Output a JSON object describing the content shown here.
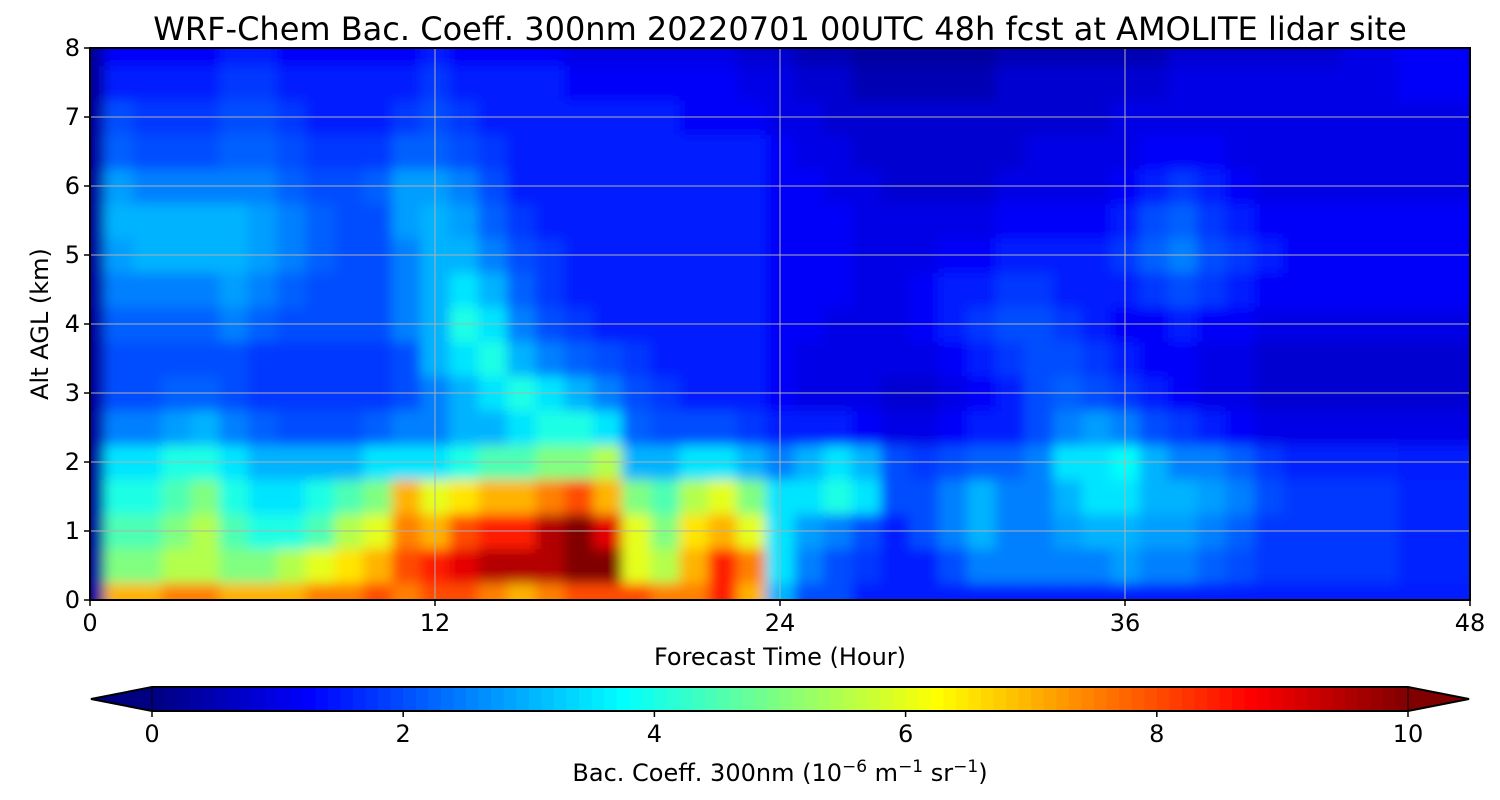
{
  "chart_data": {
    "type": "heatmap",
    "subtype": "filled-contour time-height cross-section",
    "title": "WRF-Chem Bac. Coeff. 300nm  20220701 00UTC 48h fcst at AMOLITE lidar site",
    "xlabel": "Forecast Time (Hour)",
    "ylabel": "Alt AGL (km)",
    "xlim": [
      0,
      48
    ],
    "ylim": [
      0,
      8
    ],
    "xticks": [
      0,
      12,
      24,
      36,
      48
    ],
    "yticks": [
      0,
      1,
      2,
      3,
      4,
      5,
      6,
      7,
      8
    ],
    "grid": true,
    "colormap": "jet",
    "colorbar": {
      "orientation": "horizontal",
      "placement": "bottom",
      "label_main": "Bac. Coeff. 300nm  (10",
      "label_exp1": "−6",
      "label_unit1": " m",
      "label_exp2": "−1",
      "label_unit2": " sr",
      "label_exp3": "−1",
      "label_close": ")",
      "vmin": 0,
      "vmax": 10,
      "ticks": [
        0,
        2,
        4,
        6,
        8,
        10
      ],
      "extend": "both"
    },
    "x": [
      0,
      1,
      2,
      3,
      4,
      5,
      6,
      7,
      8,
      9,
      10,
      11,
      12,
      13,
      14,
      15,
      16,
      17,
      18,
      19,
      20,
      21,
      22,
      23,
      24,
      25,
      26,
      27,
      28,
      29,
      30,
      31,
      32,
      33,
      34,
      35,
      36,
      37,
      38,
      39,
      40,
      41,
      42,
      43,
      44,
      45,
      46,
      47,
      48
    ],
    "y": [
      0,
      0.5,
      1,
      1.5,
      2,
      2.5,
      3,
      3.5,
      4,
      4.5,
      5,
      5.5,
      6,
      6.5,
      7,
      7.5,
      8
    ],
    "z": [
      [
        0.3,
        7.0,
        7.0,
        7.5,
        7.5,
        7.0,
        7.0,
        7.0,
        7.5,
        7.5,
        8.0,
        7.5,
        8.0,
        8.0,
        7.5,
        7.0,
        7.5,
        8.0,
        8.0,
        8.0,
        7.5,
        7.5,
        8.5,
        7.0,
        3.0,
        2.0,
        2.0,
        1.5,
        1.5,
        1.5,
        1.5,
        1.5,
        1.5,
        1.5,
        1.5,
        1.5,
        1.5,
        1.5,
        1.5,
        1.5,
        1.5,
        1.5,
        1.5,
        1.5,
        1.5,
        1.5,
        1.5,
        1.5,
        1.5
      ],
      [
        0.3,
        5.0,
        5.0,
        5.5,
        5.5,
        5.0,
        5.0,
        5.5,
        6.0,
        6.5,
        7.0,
        8.0,
        8.5,
        9.0,
        9.5,
        9.5,
        9.5,
        10.0,
        10.0,
        6.0,
        5.5,
        7.0,
        8.5,
        7.5,
        3.5,
        2.5,
        2.0,
        1.8,
        1.5,
        1.5,
        2.0,
        2.5,
        2.5,
        2.5,
        2.5,
        2.5,
        2.8,
        2.5,
        2.5,
        2.2,
        2.0,
        1.8,
        1.8,
        1.8,
        1.8,
        1.8,
        1.6,
        1.6,
        1.6
      ],
      [
        0.3,
        4.5,
        4.5,
        5.0,
        5.5,
        4.5,
        4.0,
        4.0,
        4.5,
        5.5,
        6.0,
        7.5,
        7.0,
        8.0,
        8.5,
        8.5,
        9.5,
        10.0,
        9.0,
        6.0,
        5.0,
        6.5,
        7.0,
        6.0,
        3.5,
        2.8,
        2.5,
        2.0,
        1.5,
        2.0,
        2.5,
        3.0,
        2.5,
        2.5,
        2.8,
        3.0,
        3.0,
        2.8,
        2.8,
        2.5,
        2.2,
        1.8,
        1.8,
        1.8,
        1.8,
        1.8,
        1.6,
        1.6,
        1.6
      ],
      [
        0.3,
        4.0,
        4.0,
        4.5,
        5.0,
        4.0,
        3.5,
        3.5,
        4.0,
        4.5,
        5.0,
        7.0,
        6.0,
        6.5,
        7.0,
        7.0,
        7.5,
        8.0,
        7.0,
        5.0,
        4.5,
        5.5,
        6.0,
        5.0,
        3.5,
        3.5,
        4.0,
        3.5,
        2.0,
        2.0,
        2.5,
        3.0,
        2.5,
        2.5,
        3.0,
        3.5,
        3.5,
        3.0,
        3.0,
        2.8,
        2.5,
        2.0,
        1.8,
        1.8,
        1.8,
        1.8,
        1.6,
        1.6,
        1.6
      ],
      [
        0.3,
        3.5,
        3.5,
        4.0,
        4.0,
        3.5,
        3.0,
        3.0,
        3.0,
        3.0,
        3.5,
        3.5,
        3.5,
        4.0,
        4.5,
        4.5,
        5.0,
        5.0,
        5.5,
        3.0,
        3.0,
        3.5,
        3.5,
        3.0,
        2.5,
        3.0,
        3.5,
        3.0,
        2.0,
        1.8,
        2.0,
        2.2,
        2.2,
        2.5,
        3.5,
        3.5,
        3.8,
        3.0,
        2.5,
        2.5,
        2.2,
        1.8,
        1.6,
        1.6,
        1.6,
        1.6,
        1.5,
        1.5,
        1.5
      ],
      [
        0.3,
        2.5,
        2.5,
        2.8,
        3.0,
        2.5,
        2.2,
        2.0,
        2.0,
        2.0,
        2.2,
        2.5,
        2.5,
        3.0,
        3.0,
        3.5,
        4.0,
        4.0,
        3.5,
        2.2,
        2.0,
        2.0,
        2.0,
        1.8,
        1.5,
        1.5,
        1.5,
        1.2,
        1.0,
        1.0,
        1.2,
        1.5,
        1.5,
        2.0,
        2.5,
        2.8,
        2.5,
        2.0,
        1.8,
        1.5,
        1.2,
        1.0,
        1.0,
        1.0,
        1.0,
        1.0,
        1.0,
        1.0,
        1.0
      ],
      [
        0.3,
        2.0,
        2.0,
        2.2,
        2.2,
        2.0,
        1.8,
        1.8,
        1.8,
        1.8,
        1.8,
        2.0,
        2.5,
        3.0,
        3.5,
        4.0,
        3.5,
        3.0,
        2.5,
        2.0,
        1.8,
        1.5,
        1.5,
        1.5,
        1.2,
        1.0,
        1.0,
        1.0,
        0.8,
        0.8,
        1.0,
        1.2,
        1.5,
        2.0,
        2.2,
        2.0,
        1.8,
        1.5,
        1.2,
        1.0,
        1.0,
        0.8,
        0.8,
        0.8,
        0.8,
        0.8,
        0.8,
        0.8,
        0.8
      ],
      [
        0.3,
        2.0,
        2.0,
        2.0,
        2.0,
        2.0,
        1.8,
        1.8,
        1.8,
        1.8,
        1.8,
        2.0,
        3.0,
        3.5,
        4.0,
        3.0,
        2.5,
        2.2,
        2.0,
        1.8,
        1.5,
        1.5,
        1.5,
        1.5,
        1.2,
        1.0,
        1.0,
        1.0,
        1.0,
        1.0,
        1.2,
        1.5,
        1.8,
        2.0,
        2.0,
        1.8,
        1.5,
        1.2,
        1.2,
        1.0,
        1.0,
        0.8,
        0.8,
        0.8,
        0.8,
        0.8,
        0.8,
        0.8,
        0.8
      ],
      [
        0.3,
        2.2,
        2.2,
        2.2,
        2.2,
        2.5,
        2.2,
        2.0,
        2.0,
        2.0,
        2.0,
        2.5,
        3.0,
        4.0,
        3.5,
        2.5,
        2.0,
        1.8,
        1.5,
        1.5,
        1.5,
        1.5,
        1.5,
        1.5,
        1.2,
        1.2,
        1.0,
        1.0,
        1.0,
        1.2,
        1.5,
        1.8,
        2.0,
        2.0,
        1.8,
        1.5,
        1.2,
        1.2,
        1.5,
        1.2,
        1.2,
        1.0,
        1.0,
        1.0,
        1.0,
        1.0,
        1.0,
        1.0,
        1.0
      ],
      [
        0.3,
        2.5,
        2.5,
        2.5,
        2.5,
        2.8,
        2.5,
        2.2,
        2.0,
        2.0,
        2.0,
        2.5,
        3.0,
        3.5,
        3.0,
        2.2,
        1.8,
        1.5,
        1.5,
        1.5,
        1.5,
        1.5,
        1.5,
        1.5,
        1.2,
        1.2,
        1.2,
        1.0,
        1.0,
        1.2,
        1.5,
        1.5,
        1.8,
        1.8,
        1.5,
        1.5,
        1.5,
        1.8,
        2.0,
        1.8,
        1.5,
        1.2,
        1.2,
        1.2,
        1.2,
        1.2,
        1.2,
        1.2,
        1.2
      ],
      [
        0.3,
        2.8,
        3.0,
        3.0,
        3.0,
        3.0,
        2.8,
        2.5,
        2.2,
        2.0,
        2.0,
        2.5,
        3.0,
        3.0,
        2.5,
        2.0,
        1.8,
        1.5,
        1.5,
        1.5,
        1.5,
        1.5,
        1.5,
        1.5,
        1.2,
        1.2,
        1.2,
        1.0,
        1.0,
        1.0,
        1.2,
        1.2,
        1.5,
        1.5,
        1.5,
        1.5,
        1.8,
        2.2,
        2.5,
        2.0,
        1.8,
        1.5,
        1.2,
        1.2,
        1.2,
        1.2,
        1.2,
        1.2,
        1.2
      ],
      [
        0.3,
        3.0,
        3.0,
        3.0,
        3.0,
        3.0,
        2.8,
        2.5,
        2.2,
        2.0,
        2.0,
        2.8,
        3.0,
        2.8,
        2.2,
        1.8,
        1.5,
        1.5,
        1.5,
        1.5,
        1.5,
        1.5,
        1.5,
        1.5,
        1.2,
        1.2,
        1.2,
        1.0,
        1.0,
        1.0,
        1.0,
        1.0,
        1.2,
        1.2,
        1.2,
        1.2,
        1.5,
        2.0,
        2.2,
        1.8,
        1.5,
        1.2,
        1.2,
        1.2,
        1.2,
        1.2,
        1.2,
        1.2,
        1.2
      ],
      [
        0.3,
        2.8,
        2.5,
        2.5,
        2.5,
        2.5,
        2.5,
        2.2,
        2.0,
        2.0,
        2.2,
        2.8,
        2.8,
        2.5,
        2.0,
        1.5,
        1.5,
        1.5,
        1.5,
        1.5,
        1.5,
        1.5,
        1.5,
        1.5,
        1.2,
        1.2,
        1.0,
        1.0,
        0.8,
        0.8,
        0.8,
        0.8,
        1.0,
        1.0,
        1.0,
        1.0,
        1.2,
        1.5,
        1.8,
        1.5,
        1.2,
        1.0,
        1.0,
        1.0,
        1.0,
        1.0,
        1.0,
        1.0,
        1.0
      ],
      [
        0.3,
        2.2,
        2.0,
        2.0,
        2.0,
        2.2,
        2.2,
        2.0,
        1.8,
        1.8,
        1.8,
        2.2,
        2.2,
        2.0,
        1.8,
        1.5,
        1.5,
        1.5,
        1.5,
        1.5,
        1.5,
        1.5,
        1.5,
        1.5,
        1.2,
        1.0,
        1.0,
        0.8,
        0.8,
        0.8,
        0.8,
        0.8,
        0.8,
        1.0,
        1.0,
        1.0,
        1.0,
        1.2,
        1.2,
        1.2,
        1.0,
        1.0,
        1.0,
        1.0,
        1.0,
        1.0,
        1.0,
        1.0,
        1.0
      ],
      [
        0.3,
        2.0,
        1.8,
        1.8,
        1.8,
        2.0,
        2.0,
        1.8,
        1.5,
        1.5,
        1.5,
        1.8,
        2.0,
        1.8,
        1.5,
        1.5,
        1.5,
        1.5,
        1.5,
        1.5,
        1.5,
        1.2,
        1.2,
        1.2,
        1.0,
        1.0,
        0.8,
        0.8,
        0.8,
        0.8,
        0.8,
        0.8,
        0.8,
        0.8,
        0.8,
        0.8,
        1.0,
        1.0,
        1.0,
        1.0,
        1.0,
        1.0,
        1.0,
        1.0,
        1.0,
        1.0,
        1.0,
        1.0,
        1.0
      ],
      [
        0.3,
        1.5,
        1.5,
        1.5,
        1.5,
        1.8,
        1.8,
        1.5,
        1.5,
        1.5,
        1.5,
        1.5,
        1.8,
        1.5,
        1.5,
        1.5,
        1.5,
        1.2,
        1.2,
        1.2,
        1.2,
        1.2,
        1.2,
        1.0,
        1.0,
        0.8,
        0.8,
        0.5,
        0.5,
        0.5,
        0.5,
        0.5,
        0.8,
        0.8,
        0.8,
        0.8,
        0.8,
        0.8,
        1.0,
        1.0,
        1.0,
        1.0,
        1.0,
        1.0,
        1.0,
        1.0,
        1.2,
        1.2,
        1.2
      ],
      [
        0.3,
        1.2,
        1.2,
        1.2,
        1.2,
        1.5,
        1.5,
        1.2,
        1.2,
        1.2,
        1.2,
        1.2,
        1.5,
        1.2,
        1.2,
        1.2,
        1.2,
        1.0,
        1.0,
        1.0,
        1.0,
        1.0,
        1.0,
        0.8,
        0.8,
        0.5,
        0.5,
        0.3,
        0.3,
        0.3,
        0.3,
        0.3,
        0.5,
        0.5,
        0.5,
        0.5,
        0.5,
        0.5,
        0.8,
        0.8,
        0.8,
        0.8,
        0.8,
        0.8,
        1.0,
        1.0,
        1.2,
        1.2,
        1.2
      ]
    ]
  }
}
